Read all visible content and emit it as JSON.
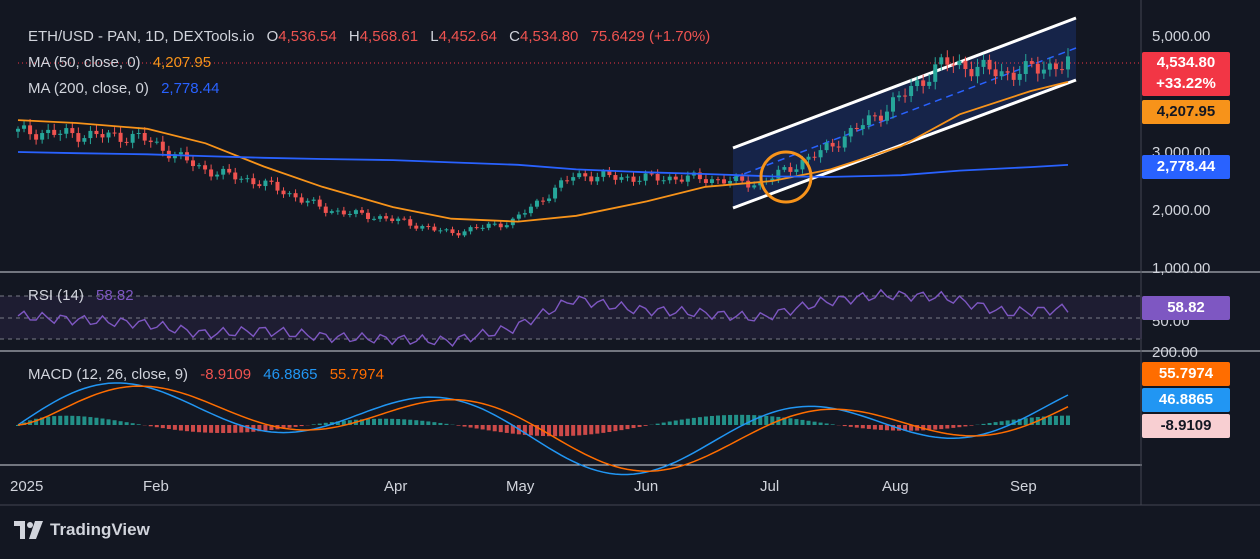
{
  "header": {
    "symbol": "ETH/USD - PAN, 1D, DEXTools.io",
    "open_label": "O",
    "open": "4,536.54",
    "high_label": "H",
    "high": "4,568.61",
    "low_label": "L",
    "low": "4,452.64",
    "close_label": "C",
    "close": "4,534.80",
    "change": "75.6429 (+1.70%)",
    "ma50_label": "MA (50, close, 0)",
    "ma50_value": "4,207.95",
    "ma200_label": "MA (200, close, 0)",
    "ma200_value": "2,778.44",
    "rsi_label": "RSI (14)",
    "rsi_value": "58.82",
    "macd_label": "MACD (12, 26, close, 9)",
    "macd_hist": "-8.9109",
    "macd_line": "46.8865",
    "macd_signal": "55.7974"
  },
  "price_scale": {
    "labels": [
      "5,000.00",
      "3,000.00",
      "2,000.00",
      "1,000.00"
    ],
    "rsi_labels": [
      "50.00"
    ],
    "macd_labels": [
      "200.00"
    ]
  },
  "tags": {
    "last_price": "4,534.80",
    "last_change": "+33.22%",
    "ma50": "4,207.95",
    "ma200": "2,778.44",
    "rsi": "58.82",
    "macd_signal": "55.7974",
    "macd_line": "46.8865",
    "macd_hist": "-8.9109"
  },
  "time_axis": [
    "2025",
    "Feb",
    "Apr",
    "May",
    "Jun",
    "Jul",
    "Aug",
    "Sep"
  ],
  "brand": "TradingView",
  "colors": {
    "background": "#131722",
    "up": "#26a69a",
    "down": "#ef5350",
    "ma50": "#f7931a",
    "ma200": "#2962ff",
    "rsi": "#7e57c2",
    "macd_line": "#2196f3",
    "macd_signal": "#ff6d00",
    "channel": "#ffffff",
    "highlight": "#f7931a"
  },
  "chart_data": {
    "type": "candlestick",
    "title": "ETH/USD - PAN, 1D, DEXTools.io",
    "x": [
      "2025-01-01",
      "2025-01-15",
      "2025-02-01",
      "2025-02-15",
      "2025-03-01",
      "2025-03-15",
      "2025-04-01",
      "2025-04-15",
      "2025-05-01",
      "2025-05-15",
      "2025-06-01",
      "2025-06-15",
      "2025-07-01",
      "2025-07-15",
      "2025-08-01",
      "2025-08-15",
      "2025-09-01",
      "2025-09-10"
    ],
    "series": [
      {
        "name": "Close",
        "values": [
          3350,
          3300,
          3250,
          2700,
          2450,
          2000,
          1850,
          1600,
          1800,
          2600,
          2550,
          2550,
          2450,
          3000,
          3700,
          4550,
          4350,
          4534.8
        ]
      },
      {
        "name": "MA (50, close, 0)",
        "values": [
          3550,
          3500,
          3400,
          3150,
          2750,
          2400,
          2050,
          1850,
          1800,
          1900,
          2150,
          2400,
          2500,
          2700,
          3100,
          3650,
          4050,
          4207.95
        ]
      },
      {
        "name": "MA (200, close, 0)",
        "values": [
          3000,
          2980,
          2960,
          2930,
          2900,
          2880,
          2860,
          2820,
          2780,
          2700,
          2650,
          2620,
          2580,
          2570,
          2600,
          2680,
          2740,
          2778.44
        ]
      }
    ],
    "ohlc_last": {
      "open": 4536.54,
      "high": 4568.61,
      "low": 4452.64,
      "close": 4534.8,
      "change": 75.6429,
      "change_pct": 1.7
    },
    "rsi": {
      "name": "RSI (14)",
      "last": 58.82,
      "values": [
        52,
        48,
        45,
        35,
        38,
        32,
        30,
        28,
        40,
        68,
        58,
        55,
        50,
        65,
        72,
        70,
        55,
        58.82
      ]
    },
    "macd": {
      "macd_last": 46.8865,
      "signal_last": 55.7974,
      "hist_last": -8.9109
    },
    "y_ticks": [
      1000,
      2000,
      3000,
      5000
    ],
    "ylim": [
      1000,
      5200
    ],
    "grid": false,
    "annotations": [
      "ascending channel",
      "circle at MA crossover"
    ]
  }
}
